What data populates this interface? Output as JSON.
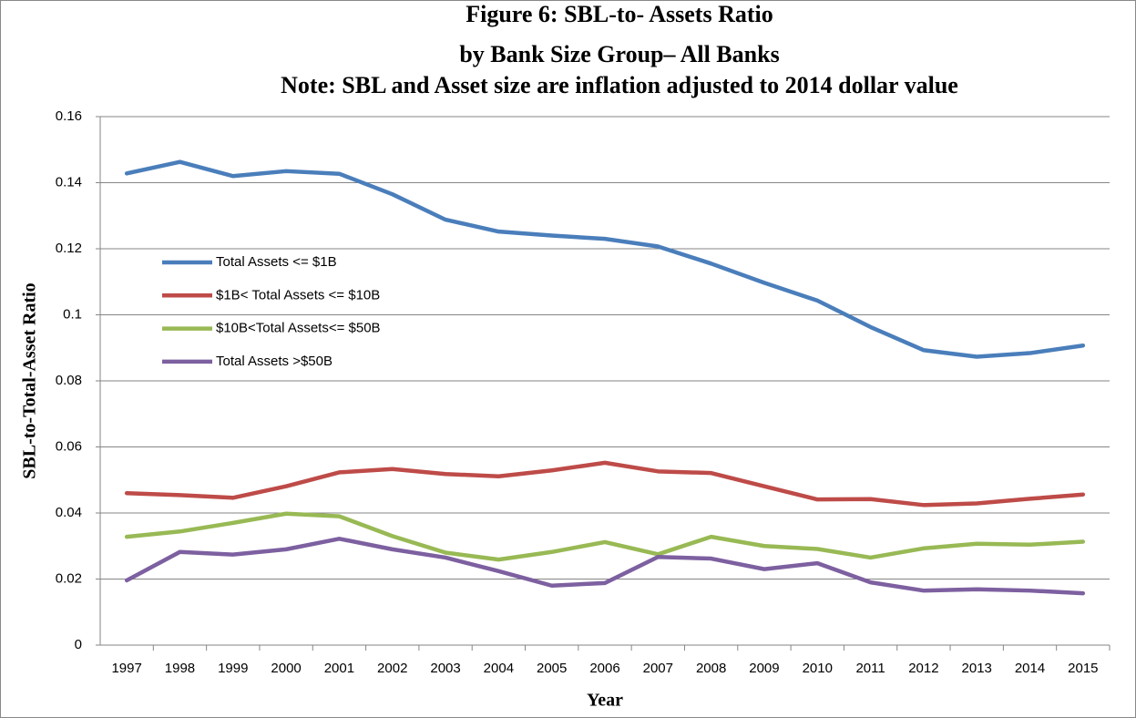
{
  "chart_data": {
    "type": "line",
    "title": [
      "Figure 6:  SBL-to- Assets Ratio",
      "by Bank Size Group–  All Banks",
      "Note: SBL and Asset size are inflation adjusted to 2014 dollar value"
    ],
    "x_label": "Year",
    "y_label": "SBL-to-Total-Asset Ratio",
    "categories": [
      "1997",
      "1998",
      "1999",
      "2000",
      "2001",
      "2002",
      "2003",
      "2004",
      "2005",
      "2006",
      "2007",
      "2008",
      "2009",
      "2010",
      "2011",
      "2012",
      "2013",
      "2014",
      "2015"
    ],
    "series": [
      {
        "name": "Total Assets <= $1B",
        "color": "#4a7ebb",
        "values": [
          0.1428,
          0.1463,
          0.142,
          0.1435,
          0.1427,
          0.1365,
          0.1288,
          0.1252,
          0.124,
          0.123,
          0.1207,
          0.1155,
          0.1097,
          0.1043,
          0.0963,
          0.0893,
          0.0873,
          0.0884,
          0.0907
        ]
      },
      {
        "name": "$1B< Total Assets <= $10B",
        "color": "#be4b48",
        "values": [
          0.046,
          0.0454,
          0.0446,
          0.0481,
          0.0523,
          0.0533,
          0.0518,
          0.0511,
          0.0529,
          0.0552,
          0.0526,
          0.0521,
          0.0481,
          0.0441,
          0.0442,
          0.0424,
          0.0429,
          0.0443,
          0.0456
        ]
      },
      {
        "name": "$10B<Total Assets<= $50B",
        "color": "#98b954",
        "values": [
          0.0328,
          0.0344,
          0.037,
          0.0398,
          0.039,
          0.033,
          0.028,
          0.0259,
          0.0282,
          0.0312,
          0.0275,
          0.0328,
          0.03,
          0.0291,
          0.0265,
          0.0293,
          0.0307,
          0.0304,
          0.0313
        ]
      },
      {
        "name": "Total Assets >$50B",
        "color": "#7d60a0",
        "values": [
          0.0196,
          0.0282,
          0.0274,
          0.029,
          0.0322,
          0.029,
          0.0265,
          0.0224,
          0.018,
          0.0188,
          0.0267,
          0.0262,
          0.023,
          0.0248,
          0.019,
          0.0165,
          0.0169,
          0.0165,
          0.0157
        ]
      }
    ],
    "ylim": [
      0,
      0.16
    ],
    "yticks": [
      0,
      0.02,
      0.04,
      0.06,
      0.08,
      0.1,
      0.12,
      0.14,
      0.16
    ],
    "grid": true,
    "legend_position": "left"
  }
}
